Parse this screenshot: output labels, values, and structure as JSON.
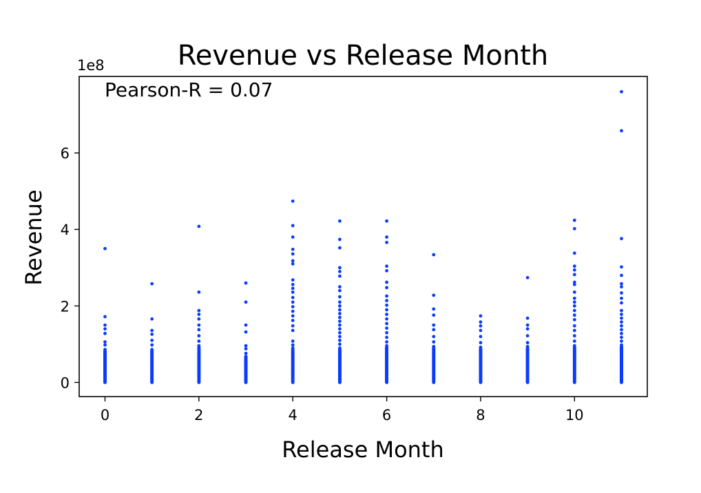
{
  "chart_data": {
    "type": "scatter",
    "title": "Revenue vs Release Month",
    "xlabel": "Release Month",
    "ylabel": "Revenue",
    "annotation": "Pearson-R = 0.07",
    "y_offset_label": "1e8",
    "xlim": [
      -0.55,
      11.55
    ],
    "ylim": [
      -0.37,
      8.0
    ],
    "y_scale": 100000000,
    "xticks": [
      0,
      2,
      4,
      6,
      8,
      10
    ],
    "yticks": [
      0,
      2,
      4,
      6
    ],
    "ytick_labels": [
      "0",
      "2",
      "4",
      "6"
    ],
    "grid": false,
    "marker_color": "#0a3cff",
    "series": [
      {
        "points": [
          {
            "x": 0,
            "y": 3.5
          },
          {
            "x": 0,
            "y": 1.72
          },
          {
            "x": 0,
            "y": 1.5
          },
          {
            "x": 0,
            "y": 1.4
          },
          {
            "x": 0,
            "y": 1.28
          },
          {
            "x": 0,
            "y": 1.06
          },
          {
            "x": 0,
            "y": 0.98
          },
          {
            "x": 0,
            "y": 0.86
          },
          {
            "x": 1,
            "y": 2.58
          },
          {
            "x": 1,
            "y": 1.66
          },
          {
            "x": 1,
            "y": 1.36
          },
          {
            "x": 1,
            "y": 1.26
          },
          {
            "x": 1,
            "y": 1.1
          },
          {
            "x": 1,
            "y": 0.98
          },
          {
            "x": 1,
            "y": 0.86
          },
          {
            "x": 2,
            "y": 4.08
          },
          {
            "x": 2,
            "y": 2.36
          },
          {
            "x": 2,
            "y": 1.88
          },
          {
            "x": 2,
            "y": 1.78
          },
          {
            "x": 2,
            "y": 1.66
          },
          {
            "x": 2,
            "y": 1.5
          },
          {
            "x": 2,
            "y": 1.38
          },
          {
            "x": 2,
            "y": 1.22
          },
          {
            "x": 2,
            "y": 1.08
          },
          {
            "x": 2,
            "y": 0.96
          },
          {
            "x": 3,
            "y": 2.6
          },
          {
            "x": 3,
            "y": 2.1
          },
          {
            "x": 3,
            "y": 1.5
          },
          {
            "x": 3,
            "y": 1.32
          },
          {
            "x": 3,
            "y": 0.96
          },
          {
            "x": 3,
            "y": 0.88
          },
          {
            "x": 3,
            "y": 0.76
          },
          {
            "x": 4,
            "y": 4.74
          },
          {
            "x": 4,
            "y": 4.1
          },
          {
            "x": 4,
            "y": 3.8
          },
          {
            "x": 4,
            "y": 3.48
          },
          {
            "x": 4,
            "y": 3.36
          },
          {
            "x": 4,
            "y": 3.18
          },
          {
            "x": 4,
            "y": 3.1
          },
          {
            "x": 4,
            "y": 2.68
          },
          {
            "x": 4,
            "y": 2.56
          },
          {
            "x": 4,
            "y": 2.46
          },
          {
            "x": 4,
            "y": 2.36
          },
          {
            "x": 4,
            "y": 2.22
          },
          {
            "x": 4,
            "y": 2.1
          },
          {
            "x": 4,
            "y": 1.98
          },
          {
            "x": 4,
            "y": 1.86
          },
          {
            "x": 4,
            "y": 1.74
          },
          {
            "x": 4,
            "y": 1.62
          },
          {
            "x": 4,
            "y": 1.48
          },
          {
            "x": 4,
            "y": 1.36
          },
          {
            "x": 4,
            "y": 1.08
          },
          {
            "x": 4,
            "y": 0.98
          },
          {
            "x": 4,
            "y": 0.9
          },
          {
            "x": 5,
            "y": 4.22
          },
          {
            "x": 5,
            "y": 3.74
          },
          {
            "x": 5,
            "y": 3.52
          },
          {
            "x": 5,
            "y": 3.0
          },
          {
            "x": 5,
            "y": 2.9
          },
          {
            "x": 5,
            "y": 2.78
          },
          {
            "x": 5,
            "y": 2.5
          },
          {
            "x": 5,
            "y": 2.4
          },
          {
            "x": 5,
            "y": 2.24
          },
          {
            "x": 5,
            "y": 2.1
          },
          {
            "x": 5,
            "y": 2.0
          },
          {
            "x": 5,
            "y": 1.9
          },
          {
            "x": 5,
            "y": 1.8
          },
          {
            "x": 5,
            "y": 1.7
          },
          {
            "x": 5,
            "y": 1.6
          },
          {
            "x": 5,
            "y": 1.5
          },
          {
            "x": 5,
            "y": 1.4
          },
          {
            "x": 5,
            "y": 1.3
          },
          {
            "x": 5,
            "y": 1.2
          },
          {
            "x": 5,
            "y": 1.1
          },
          {
            "x": 5,
            "y": 1.0
          },
          {
            "x": 5,
            "y": 0.9
          },
          {
            "x": 6,
            "y": 4.22
          },
          {
            "x": 6,
            "y": 3.8
          },
          {
            "x": 6,
            "y": 3.66
          },
          {
            "x": 6,
            "y": 3.04
          },
          {
            "x": 6,
            "y": 2.92
          },
          {
            "x": 6,
            "y": 2.62
          },
          {
            "x": 6,
            "y": 2.48
          },
          {
            "x": 6,
            "y": 2.26
          },
          {
            "x": 6,
            "y": 2.14
          },
          {
            "x": 6,
            "y": 2.02
          },
          {
            "x": 6,
            "y": 1.9
          },
          {
            "x": 6,
            "y": 1.78
          },
          {
            "x": 6,
            "y": 1.66
          },
          {
            "x": 6,
            "y": 1.54
          },
          {
            "x": 6,
            "y": 1.42
          },
          {
            "x": 6,
            "y": 1.3
          },
          {
            "x": 6,
            "y": 1.18
          },
          {
            "x": 6,
            "y": 1.06
          },
          {
            "x": 6,
            "y": 0.96
          },
          {
            "x": 7,
            "y": 3.34
          },
          {
            "x": 7,
            "y": 2.28
          },
          {
            "x": 7,
            "y": 1.92
          },
          {
            "x": 7,
            "y": 1.76
          },
          {
            "x": 7,
            "y": 1.5
          },
          {
            "x": 7,
            "y": 1.38
          },
          {
            "x": 7,
            "y": 1.2
          },
          {
            "x": 7,
            "y": 1.06
          },
          {
            "x": 7,
            "y": 0.94
          },
          {
            "x": 8,
            "y": 1.74
          },
          {
            "x": 8,
            "y": 1.58
          },
          {
            "x": 8,
            "y": 1.48
          },
          {
            "x": 8,
            "y": 1.36
          },
          {
            "x": 8,
            "y": 1.2
          },
          {
            "x": 8,
            "y": 1.04
          },
          {
            "x": 8,
            "y": 0.92
          },
          {
            "x": 9,
            "y": 2.74
          },
          {
            "x": 9,
            "y": 1.68
          },
          {
            "x": 9,
            "y": 1.5
          },
          {
            "x": 9,
            "y": 1.4
          },
          {
            "x": 9,
            "y": 1.22
          },
          {
            "x": 9,
            "y": 1.04
          },
          {
            "x": 9,
            "y": 0.94
          },
          {
            "x": 10,
            "y": 4.24
          },
          {
            "x": 10,
            "y": 4.02
          },
          {
            "x": 10,
            "y": 3.38
          },
          {
            "x": 10,
            "y": 3.04
          },
          {
            "x": 10,
            "y": 2.94
          },
          {
            "x": 10,
            "y": 2.82
          },
          {
            "x": 10,
            "y": 2.62
          },
          {
            "x": 10,
            "y": 2.56
          },
          {
            "x": 10,
            "y": 2.36
          },
          {
            "x": 10,
            "y": 2.2
          },
          {
            "x": 10,
            "y": 2.1
          },
          {
            "x": 10,
            "y": 2.0
          },
          {
            "x": 10,
            "y": 1.88
          },
          {
            "x": 10,
            "y": 1.76
          },
          {
            "x": 10,
            "y": 1.64
          },
          {
            "x": 10,
            "y": 1.48
          },
          {
            "x": 10,
            "y": 1.36
          },
          {
            "x": 10,
            "y": 1.22
          },
          {
            "x": 10,
            "y": 1.08
          },
          {
            "x": 10,
            "y": 0.96
          },
          {
            "x": 11,
            "y": 7.6
          },
          {
            "x": 11,
            "y": 6.58
          },
          {
            "x": 11,
            "y": 3.76
          },
          {
            "x": 11,
            "y": 3.02
          },
          {
            "x": 11,
            "y": 2.8
          },
          {
            "x": 11,
            "y": 2.58
          },
          {
            "x": 11,
            "y": 2.5
          },
          {
            "x": 11,
            "y": 2.34
          },
          {
            "x": 11,
            "y": 2.2
          },
          {
            "x": 11,
            "y": 2.08
          },
          {
            "x": 11,
            "y": 1.88
          },
          {
            "x": 11,
            "y": 1.78
          },
          {
            "x": 11,
            "y": 1.68
          },
          {
            "x": 11,
            "y": 1.58
          },
          {
            "x": 11,
            "y": 1.48
          },
          {
            "x": 11,
            "y": 1.38
          },
          {
            "x": 11,
            "y": 1.28
          },
          {
            "x": 11,
            "y": 1.18
          },
          {
            "x": 11,
            "y": 1.08
          },
          {
            "x": 11,
            "y": 0.98
          }
        ],
        "dense_columns": [
          {
            "x": 0,
            "y_min": 0.0,
            "y_max": 0.82
          },
          {
            "x": 1,
            "y_min": 0.0,
            "y_max": 0.84
          },
          {
            "x": 2,
            "y_min": 0.0,
            "y_max": 0.92
          },
          {
            "x": 3,
            "y_min": 0.0,
            "y_max": 0.68
          },
          {
            "x": 4,
            "y_min": 0.0,
            "y_max": 0.86
          },
          {
            "x": 5,
            "y_min": 0.0,
            "y_max": 0.86
          },
          {
            "x": 6,
            "y_min": 0.0,
            "y_max": 0.92
          },
          {
            "x": 7,
            "y_min": 0.0,
            "y_max": 0.9
          },
          {
            "x": 8,
            "y_min": 0.0,
            "y_max": 0.88
          },
          {
            "x": 9,
            "y_min": 0.0,
            "y_max": 0.9
          },
          {
            "x": 10,
            "y_min": 0.0,
            "y_max": 0.92
          },
          {
            "x": 11,
            "y_min": 0.0,
            "y_max": 0.94
          }
        ]
      }
    ]
  }
}
